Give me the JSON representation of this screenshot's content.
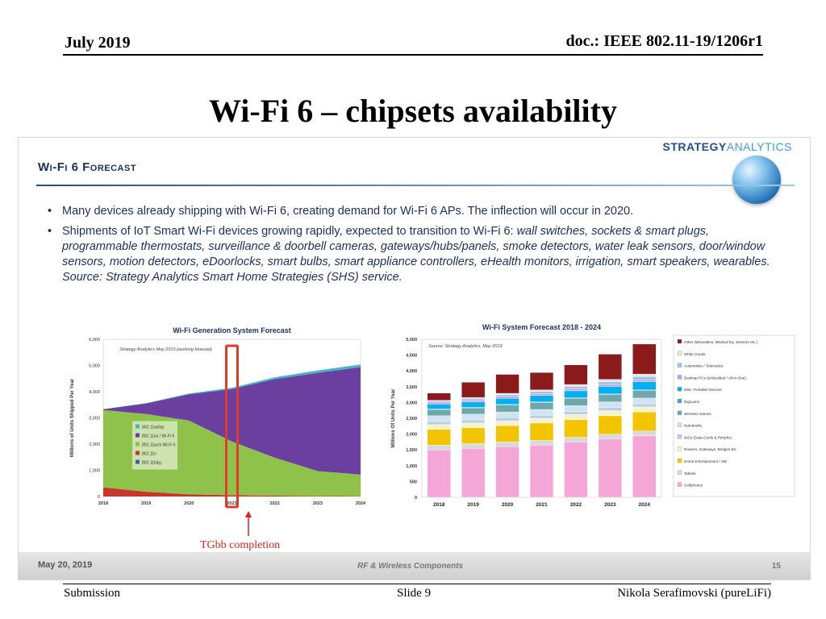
{
  "header": {
    "date": "July 2019",
    "doc": "doc.: IEEE 802.11-19/1206r1"
  },
  "slide_title": "Wi-Fi 6 – chipsets availability",
  "panel": {
    "logo_a": "STRATEGY",
    "logo_b": "ANALYTICS",
    "icon": "globe-icon",
    "title": "Wi-Fi 6 Forecast",
    "bullet1": "Many devices already shipping with Wi-Fi 6, creating demand for Wi-Fi 6 APs.  The inflection will occur in 2020.",
    "bullet2_lead": "Shipments of IoT Smart Wi-Fi devices growing rapidly, expected to transition to Wi-Fi 6: ",
    "bullet2_italic": "wall switches, sockets & smart plugs, programmable thermostats, surveillance & doorbell cameras, gateways/hubs/panels, smoke detectors, water leak sensors, door/window sensors, motion detectors, eDoorlocks, smart bulbs, smart appliance controllers, eHealth monitors, irrigation, smart speakers, wearables.  Source: Strategy Analytics Smart Home Strategies (SHS) service.",
    "footer_date": "May 20, 2019",
    "footer_mid": "RF & Wireless Components",
    "footer_page": "15"
  },
  "annotation": {
    "label": "TGbb completion",
    "color": "#e02020"
  },
  "footer": {
    "left": "Submission",
    "mid": "Slide 9",
    "right": "Nikola Serafimovski (pureLiFi)"
  },
  "chart_data": [
    {
      "type": "area",
      "title": "Wi-Fi Generation System Forecast",
      "source_note": "Strategy Analytics May 2019 (working forecast)",
      "ylabel": "Millions of Units Shipped Per Year",
      "xlabel": "",
      "x": [
        "2018",
        "2019",
        "2020",
        "2021",
        "2022",
        "2023",
        "2024"
      ],
      "ylim": [
        0,
        6000
      ],
      "yticks": [
        "0",
        "1,000",
        "2,000",
        "3,000",
        "4,000",
        "5,000",
        "6,000"
      ],
      "stacked": true,
      "highlight_year": "2021",
      "series": [
        {
          "name": "802.11b&g",
          "color": "#3a5fb0",
          "values": [
            0,
            0,
            0,
            0,
            0,
            0,
            0
          ]
        },
        {
          "name": "802.11n",
          "color": "#c8342e",
          "values": [
            350,
            180,
            80,
            50,
            30,
            20,
            10
          ]
        },
        {
          "name": "802.11ac/n Wi-Fi 5",
          "color": "#8fc24a",
          "values": [
            2950,
            2970,
            2820,
            2050,
            1450,
            950,
            830
          ]
        },
        {
          "name": "802.11ax / Wi-Fi 6",
          "color": "#6a3fa0",
          "values": [
            30,
            400,
            1000,
            2000,
            3000,
            3750,
            4100
          ]
        },
        {
          "name": "802.11ad/ay",
          "color": "#46b3c9",
          "values": [
            5,
            15,
            30,
            50,
            70,
            90,
            100
          ]
        }
      ]
    },
    {
      "type": "bar",
      "stacked": true,
      "title": "Wi-Fi System  Forecast 2018 - 2024",
      "source_note": "Source: Strategy Analytics, May 2019",
      "ylabel": "Millions  Of Units Per Year",
      "categories": [
        "2018",
        "2019",
        "2020",
        "2021",
        "2022",
        "2023",
        "2024"
      ],
      "ylim": [
        0,
        5000
      ],
      "yticks": [
        "0",
        "500",
        "1,000",
        "1,500",
        "2,000",
        "2,500",
        "3,000",
        "3,500",
        "4,000",
        "4,500",
        "5,000"
      ],
      "series": [
        {
          "name": "Cellphones",
          "color": "#f4a6d7",
          "values": [
            1500,
            1550,
            1600,
            1650,
            1750,
            1850,
            1950
          ]
        },
        {
          "name": "Tablets",
          "color": "#d9d9d9",
          "values": [
            150,
            150,
            150,
            150,
            150,
            150,
            150
          ]
        },
        {
          "name": "Home Entertainment / AM",
          "color": "#f2c500",
          "values": [
            500,
            500,
            520,
            550,
            560,
            580,
            600
          ]
        },
        {
          "name": "Routers, Gateways, Bridges Etc",
          "color": "#f7f2c8",
          "values": [
            150,
            150,
            150,
            150,
            160,
            160,
            160
          ]
        },
        {
          "name": "NICs (Data Cards & Periphs)",
          "color": "#b8cfe6",
          "values": [
            100,
            100,
            100,
            100,
            100,
            100,
            100
          ]
        },
        {
          "name": "Notebooks",
          "color": "#cfe3f0",
          "values": [
            180,
            180,
            180,
            180,
            180,
            180,
            180
          ]
        },
        {
          "name": "Wireless Games",
          "color": "#6fa8a8",
          "values": [
            200,
            200,
            220,
            220,
            230,
            230,
            240
          ]
        },
        {
          "name": "Digicams",
          "color": "#5a9bd4",
          "values": [
            20,
            20,
            20,
            20,
            20,
            20,
            20
          ]
        },
        {
          "name": "Misc. Portable Devices",
          "color": "#00b0f0",
          "values": [
            150,
            170,
            190,
            200,
            220,
            240,
            260
          ]
        },
        {
          "name": "Desktop PCs (embedded / All-in-One)",
          "color": "#c9a0dc",
          "values": [
            60,
            60,
            60,
            60,
            60,
            60,
            60
          ]
        },
        {
          "name": "Automotive / Telematics",
          "color": "#9dc3e6",
          "values": [
            40,
            50,
            60,
            70,
            80,
            90,
            100
          ]
        },
        {
          "name": "White Goods",
          "color": "#e6e6e6",
          "values": [
            20,
            30,
            40,
            50,
            60,
            70,
            80
          ]
        },
        {
          "name": "Other (Wearables, Medical Eq, Sensors etc.)",
          "color": "#8b1a1a",
          "values": [
            230,
            480,
            600,
            550,
            620,
            800,
            950
          ]
        }
      ]
    }
  ]
}
